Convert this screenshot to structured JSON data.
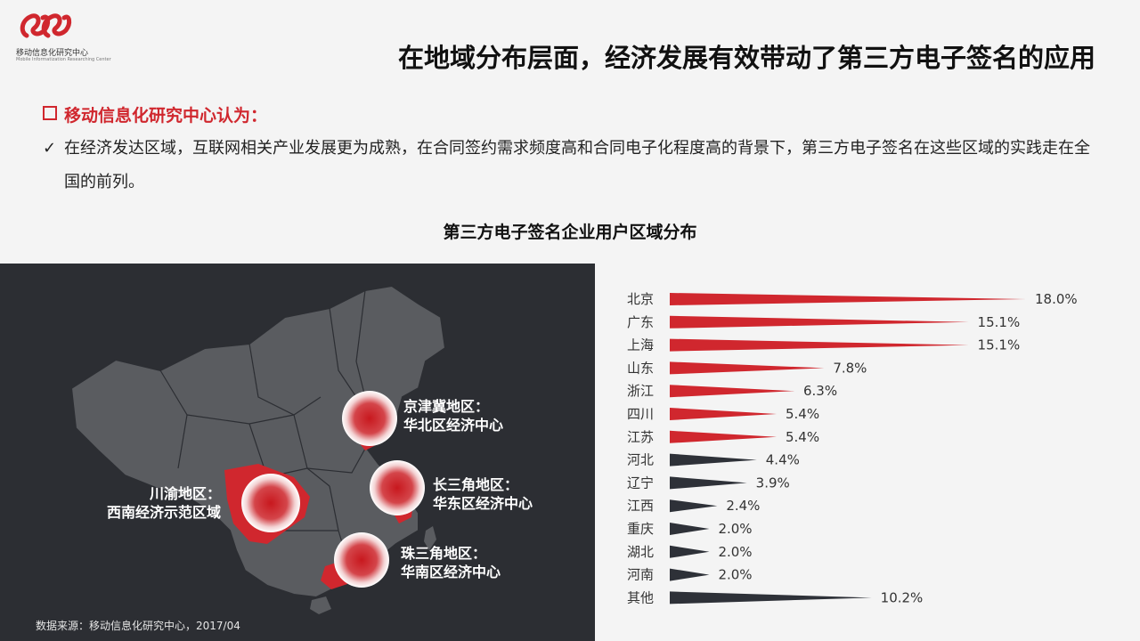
{
  "logo": {
    "name_cn": "移动信息化研究中心",
    "name_en": "Mobile Informatization Researching Center",
    "brand_color": "#d0272e"
  },
  "header": {
    "title": "在地域分布层面，经济发展有效带动了第三方电子签名的应用"
  },
  "section": {
    "title": "移动信息化研究中心认为：",
    "bullet": "在经济发达区域，互联网相关产业发展更为成熟，在合同签约需求频度高和合同电子化程度高的背景下，第三方电子签名在这些区域的实践走在全国的前列。"
  },
  "map": {
    "regions": [
      {
        "line1": "京津冀地区：",
        "line2": "华北区经济中心"
      },
      {
        "line1": "长三角地区：",
        "line2": "华东区经济中心"
      },
      {
        "line1": "川渝地区：",
        "line2": "西南经济示范区域"
      },
      {
        "line1": "珠三角地区：",
        "line2": "华南区经济中心"
      }
    ],
    "source": "数据来源：移动信息化研究中心，2017/04"
  },
  "chart_data": {
    "type": "bar",
    "orientation": "horizontal",
    "title": "第三方电子签名企业用户区域分布",
    "categories": [
      "北京",
      "广东",
      "上海",
      "山东",
      "浙江",
      "四川",
      "江苏",
      "河北",
      "辽宁",
      "江西",
      "重庆",
      "湖北",
      "河南",
      "其他"
    ],
    "values": [
      18.0,
      15.1,
      15.1,
      7.8,
      6.3,
      5.4,
      5.4,
      4.4,
      3.9,
      2.4,
      2.0,
      2.0,
      2.0,
      10.2
    ],
    "labels": [
      "18.0%",
      "15.1%",
      "15.1%",
      "7.8%",
      "6.3%",
      "5.4%",
      "5.4%",
      "4.4%",
      "3.9%",
      "2.4%",
      "2.0%",
      "2.0%",
      "2.0%",
      "10.2%"
    ],
    "highlight_count": 7,
    "colors": {
      "highlight": "#d0272e",
      "other": "#2e3138"
    }
  }
}
